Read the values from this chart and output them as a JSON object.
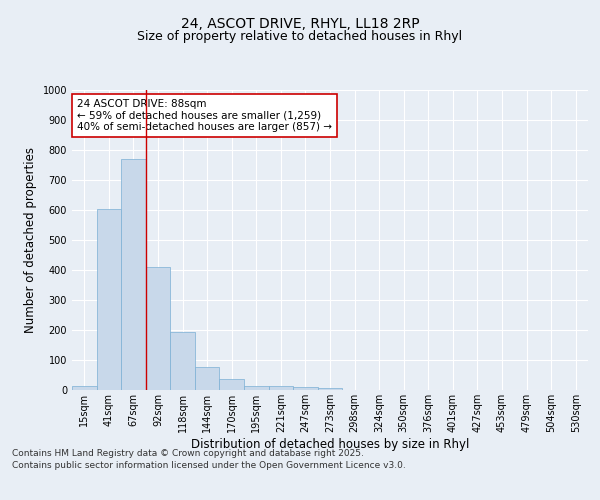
{
  "title_line1": "24, ASCOT DRIVE, RHYL, LL18 2RP",
  "title_line2": "Size of property relative to detached houses in Rhyl",
  "xlabel": "Distribution of detached houses by size in Rhyl",
  "ylabel": "Number of detached properties",
  "categories": [
    "15sqm",
    "41sqm",
    "67sqm",
    "92sqm",
    "118sqm",
    "144sqm",
    "170sqm",
    "195sqm",
    "221sqm",
    "247sqm",
    "273sqm",
    "298sqm",
    "324sqm",
    "350sqm",
    "376sqm",
    "401sqm",
    "427sqm",
    "453sqm",
    "479sqm",
    "504sqm",
    "530sqm"
  ],
  "values": [
    12,
    605,
    770,
    410,
    193,
    78,
    37,
    15,
    15,
    10,
    7,
    0,
    0,
    0,
    0,
    0,
    0,
    0,
    0,
    0,
    0
  ],
  "bar_color": "#c8d8ea",
  "bar_edge_color": "#7aafd4",
  "vline_x_idx": 3,
  "vline_color": "#cc0000",
  "annotation_text": "24 ASCOT DRIVE: 88sqm\n← 59% of detached houses are smaller (1,259)\n40% of semi-detached houses are larger (857) →",
  "annotation_box_facecolor": "#ffffff",
  "annotation_box_edgecolor": "#cc0000",
  "ylim": [
    0,
    1000
  ],
  "yticks": [
    0,
    100,
    200,
    300,
    400,
    500,
    600,
    700,
    800,
    900,
    1000
  ],
  "background_color": "#e8eef5",
  "grid_color": "#ffffff",
  "footer_line1": "Contains HM Land Registry data © Crown copyright and database right 2025.",
  "footer_line2": "Contains public sector information licensed under the Open Government Licence v3.0.",
  "title_fontsize": 10,
  "subtitle_fontsize": 9,
  "axis_label_fontsize": 8.5,
  "tick_fontsize": 7,
  "annotation_fontsize": 7.5,
  "footer_fontsize": 6.5
}
